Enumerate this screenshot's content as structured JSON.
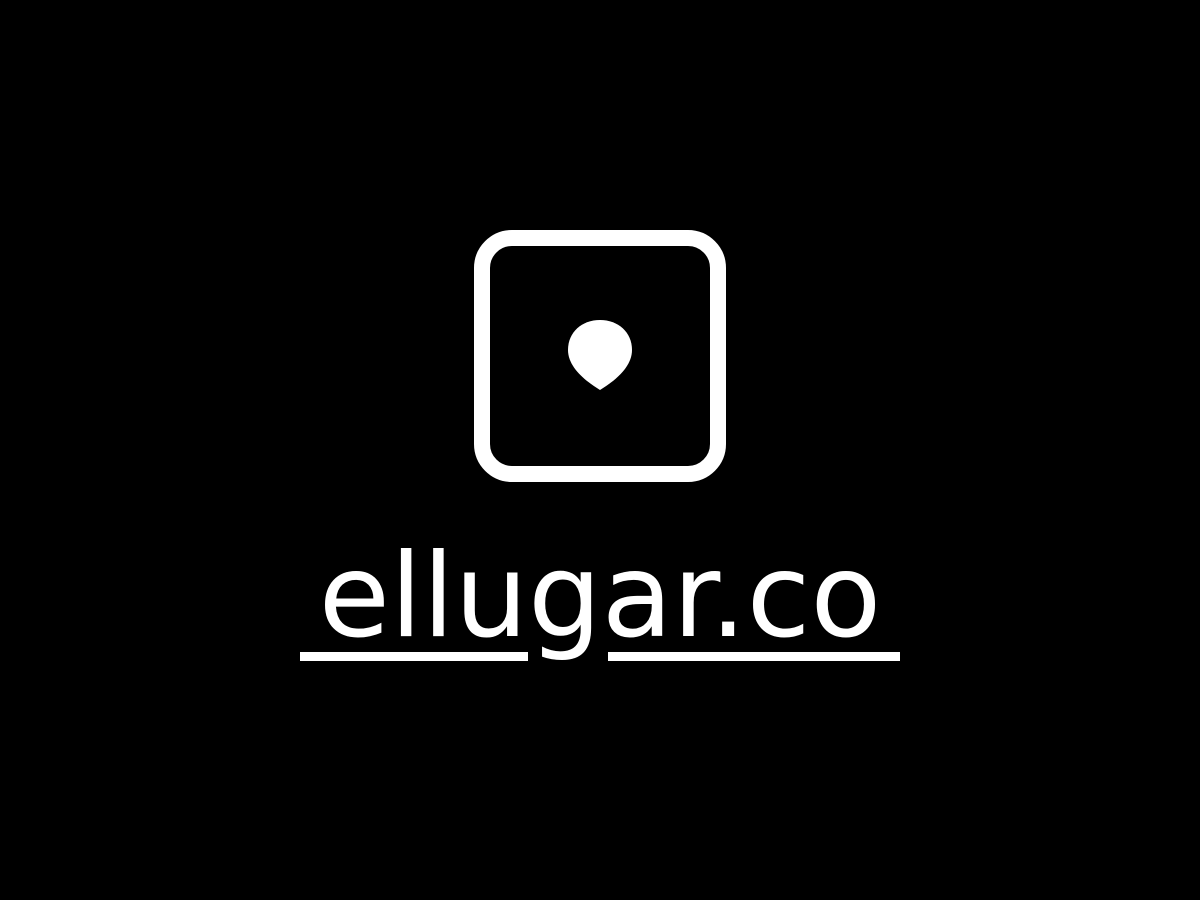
{
  "brand": {
    "name": "ellugar.co",
    "colors": {
      "background": "#000000",
      "foreground": "#ffffff"
    },
    "mark_icon": "rounded-square-with-drop-icon"
  }
}
